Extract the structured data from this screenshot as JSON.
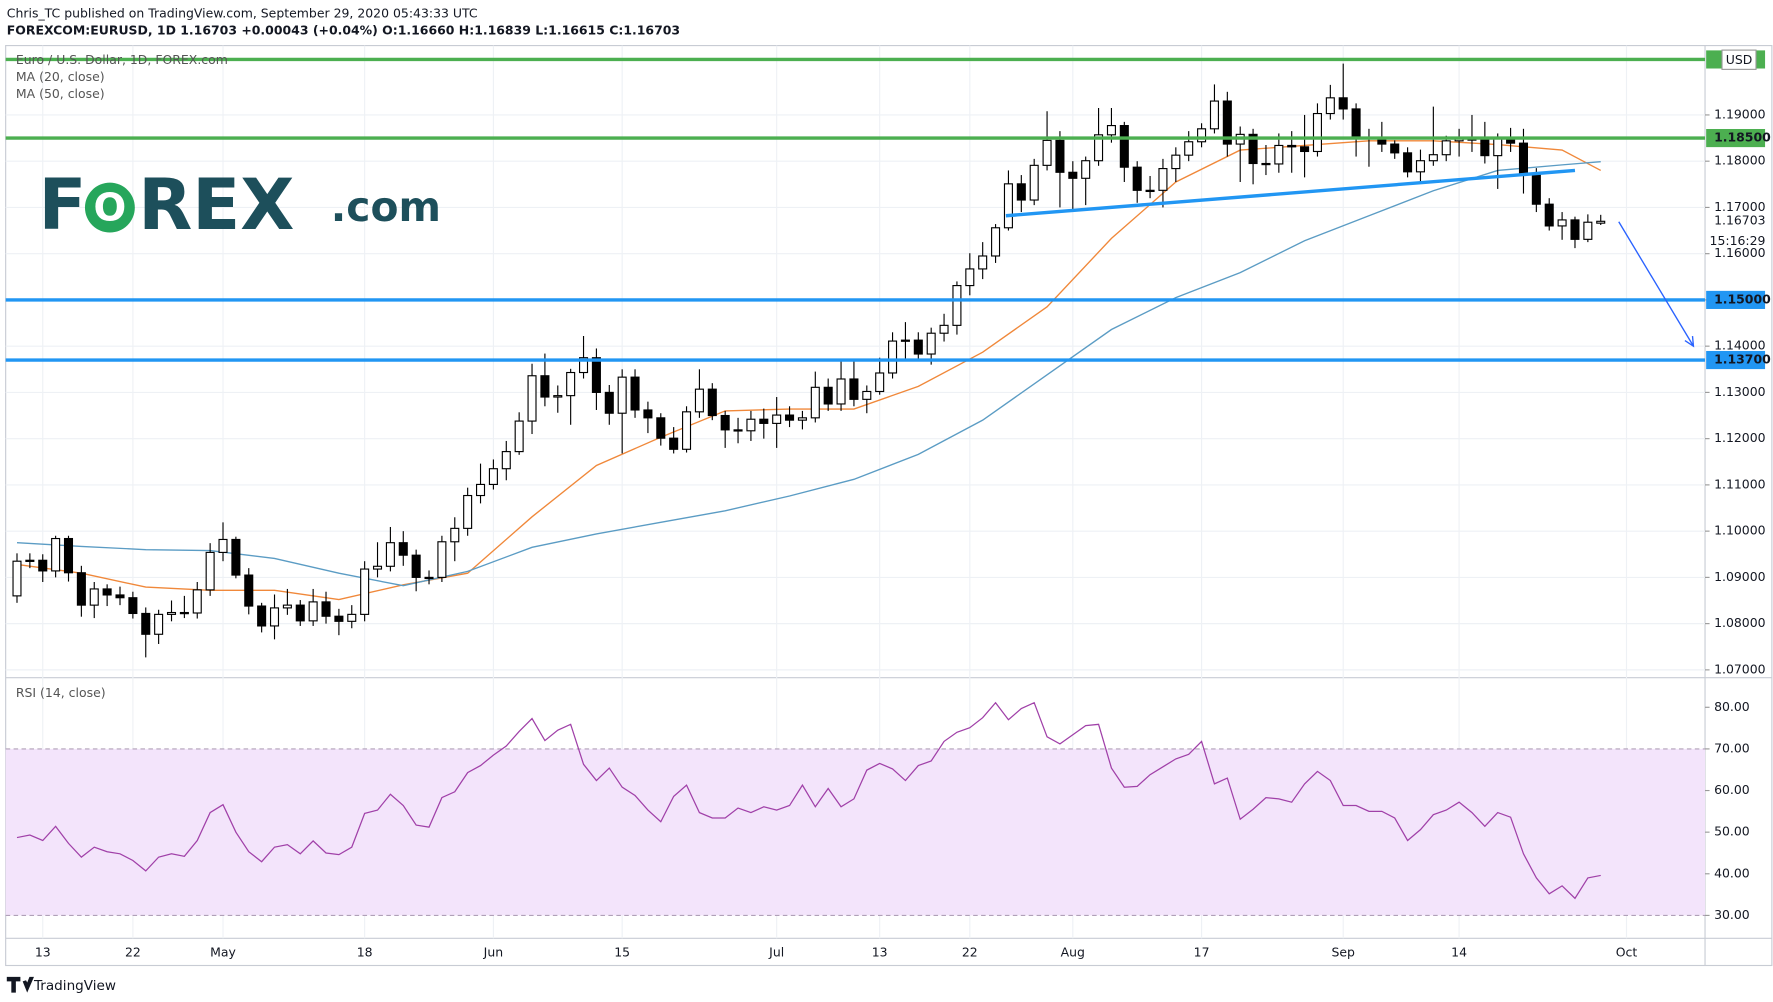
{
  "header": {
    "author": "Chris_TC published on TradingView.com, September 29, 2020 05:43:33 UTC",
    "symbol": "FOREXCOM:EURUSD, 1D 1.16703 +0.00043 (+0.04%) O:1.16660 H:1.16839 L:1.16615 C:1.16703"
  },
  "logo": [
    "F",
    "O",
    "REX",
    ".com"
  ],
  "footer": "TradingView",
  "chart_data": [
    {
      "type": "candlestick",
      "title": "Euro / U.S. Dollar, 1D, FOREX.com",
      "currency": "USD",
      "countdown": "15:16:29",
      "grid": true,
      "up_color": "#ffffff",
      "down_color": "#000000",
      "xlim": [
        -0.88,
        131.1
      ],
      "ylim": [
        1.0683,
        1.205
      ],
      "yticks": [
        {
          "value": 1.07,
          "label": "1.07000"
        },
        {
          "value": 1.08,
          "label": "1.08000"
        },
        {
          "value": 1.09,
          "label": "1.09000"
        },
        {
          "value": 1.1,
          "label": "1.10000"
        },
        {
          "value": 1.11,
          "label": "1.11000"
        },
        {
          "value": 1.12,
          "label": "1.12000"
        },
        {
          "value": 1.13,
          "label": "1.13000"
        },
        {
          "value": 1.14,
          "label": "1.14000"
        },
        {
          "value": 1.15,
          "label": "1.15000"
        },
        {
          "value": 1.16,
          "label": "1.16000"
        },
        {
          "value": 1.17,
          "label": "1.17000"
        },
        {
          "value": 1.18,
          "label": "1.18000"
        },
        {
          "value": 1.19,
          "label": "1.19000"
        }
      ],
      "ohlc": [
        [
          1.086,
          1.0952,
          1.0845,
          1.0935
        ],
        [
          1.0935,
          1.0952,
          1.092,
          1.0937
        ],
        [
          1.0937,
          1.095,
          1.089,
          1.0914
        ],
        [
          1.0914,
          1.099,
          1.09,
          1.0984
        ],
        [
          1.0984,
          1.099,
          1.0891,
          1.091
        ],
        [
          1.091,
          1.0925,
          1.0815,
          1.084
        ],
        [
          1.084,
          1.089,
          1.0812,
          1.0875
        ],
        [
          1.0875,
          1.0885,
          1.0838,
          1.0862
        ],
        [
          1.0862,
          1.088,
          1.084,
          1.0856
        ],
        [
          1.0856,
          1.0869,
          1.0811,
          1.0822
        ],
        [
          1.0822,
          1.0835,
          1.0727,
          1.0777
        ],
        [
          1.0777,
          1.083,
          1.0756,
          1.082
        ],
        [
          1.082,
          1.085,
          1.0805,
          1.0824
        ],
        [
          1.0824,
          1.086,
          1.0812,
          1.0823
        ],
        [
          1.0823,
          1.089,
          1.0811,
          1.0873
        ],
        [
          1.0873,
          1.0974,
          1.086,
          1.0954
        ],
        [
          1.0954,
          1.1019,
          1.0935,
          1.0982
        ],
        [
          1.0982,
          1.0988,
          1.0898,
          1.0905
        ],
        [
          1.0905,
          1.092,
          1.082,
          1.0838
        ],
        [
          1.0838,
          1.0845,
          1.0781,
          1.0795
        ],
        [
          1.0795,
          1.0863,
          1.0766,
          1.0834
        ],
        [
          1.0834,
          1.0875,
          1.0819,
          1.084
        ],
        [
          1.084,
          1.0851,
          1.0795,
          1.0806
        ],
        [
          1.0806,
          1.0875,
          1.0795,
          1.0847
        ],
        [
          1.0847,
          1.0869,
          1.08,
          1.0816
        ],
        [
          1.0816,
          1.0832,
          1.0775,
          1.0805
        ],
        [
          1.0805,
          1.084,
          1.079,
          1.082
        ],
        [
          1.082,
          1.0935,
          1.0805,
          1.0918
        ],
        [
          1.0918,
          1.0976,
          1.09,
          1.0924
        ],
        [
          1.0924,
          1.1009,
          1.0913,
          1.0975
        ],
        [
          1.0975,
          1.1,
          1.0925,
          1.0948
        ],
        [
          1.0948,
          1.096,
          1.087,
          1.09
        ],
        [
          1.09,
          1.0915,
          1.0885,
          1.09
        ],
        [
          1.09,
          1.099,
          1.089,
          1.0977
        ],
        [
          1.0977,
          1.103,
          1.0935,
          1.1006
        ],
        [
          1.1006,
          1.1094,
          1.099,
          1.1077
        ],
        [
          1.1077,
          1.1146,
          1.106,
          1.1101
        ],
        [
          1.1101,
          1.1155,
          1.109,
          1.1135
        ],
        [
          1.1135,
          1.1195,
          1.111,
          1.1172
        ],
        [
          1.1172,
          1.1257,
          1.1165,
          1.1238
        ],
        [
          1.1238,
          1.1362,
          1.121,
          1.1336
        ],
        [
          1.1336,
          1.1384,
          1.127,
          1.129
        ],
        [
          1.129,
          1.1315,
          1.1256,
          1.1293
        ],
        [
          1.1293,
          1.1351,
          1.123,
          1.1343
        ],
        [
          1.1343,
          1.1422,
          1.133,
          1.1375
        ],
        [
          1.1375,
          1.1395,
          1.1262,
          1.13
        ],
        [
          1.13,
          1.1316,
          1.123,
          1.1255
        ],
        [
          1.1255,
          1.135,
          1.1168,
          1.1333
        ],
        [
          1.1333,
          1.135,
          1.1245,
          1.1262
        ],
        [
          1.1262,
          1.128,
          1.1212,
          1.1245
        ],
        [
          1.1245,
          1.1255,
          1.1185,
          1.1201
        ],
        [
          1.1201,
          1.1225,
          1.1168,
          1.1177
        ],
        [
          1.1177,
          1.127,
          1.117,
          1.1258
        ],
        [
          1.1258,
          1.135,
          1.1245,
          1.1307
        ],
        [
          1.1307,
          1.132,
          1.124,
          1.125
        ],
        [
          1.125,
          1.126,
          1.118,
          1.1219
        ],
        [
          1.1219,
          1.1245,
          1.119,
          1.1217
        ],
        [
          1.1217,
          1.126,
          1.1195,
          1.1242
        ],
        [
          1.1242,
          1.1265,
          1.12,
          1.1233
        ],
        [
          1.1233,
          1.129,
          1.118,
          1.1251
        ],
        [
          1.1251,
          1.127,
          1.1225,
          1.124
        ],
        [
          1.124,
          1.126,
          1.122,
          1.1245
        ],
        [
          1.1245,
          1.1345,
          1.1235,
          1.1311
        ],
        [
          1.1311,
          1.133,
          1.126,
          1.1275
        ],
        [
          1.1275,
          1.137,
          1.126,
          1.1329
        ],
        [
          1.1329,
          1.137,
          1.127,
          1.1285
        ],
        [
          1.1285,
          1.1315,
          1.1255,
          1.1302
        ],
        [
          1.1302,
          1.1375,
          1.1295,
          1.1342
        ],
        [
          1.1342,
          1.143,
          1.133,
          1.1411
        ],
        [
          1.1411,
          1.1452,
          1.137,
          1.1413
        ],
        [
          1.1413,
          1.143,
          1.137,
          1.1383
        ],
        [
          1.1383,
          1.144,
          1.136,
          1.1428
        ],
        [
          1.1428,
          1.147,
          1.141,
          1.1445
        ],
        [
          1.1445,
          1.154,
          1.1425,
          1.1531
        ],
        [
          1.1531,
          1.1601,
          1.151,
          1.1567
        ],
        [
          1.1567,
          1.1625,
          1.1545,
          1.1595
        ],
        [
          1.1595,
          1.1664,
          1.158,
          1.1656
        ],
        [
          1.1656,
          1.178,
          1.165,
          1.1751
        ],
        [
          1.1751,
          1.177,
          1.169,
          1.1716
        ],
        [
          1.1716,
          1.1805,
          1.1705,
          1.1791
        ],
        [
          1.1791,
          1.1908,
          1.178,
          1.1845
        ],
        [
          1.1845,
          1.1865,
          1.17,
          1.1776
        ],
        [
          1.1776,
          1.18,
          1.1695,
          1.1763
        ],
        [
          1.1763,
          1.181,
          1.1705,
          1.1801
        ],
        [
          1.1801,
          1.1915,
          1.179,
          1.1857
        ],
        [
          1.1857,
          1.1915,
          1.184,
          1.1877
        ],
        [
          1.1877,
          1.1885,
          1.1755,
          1.1787
        ],
        [
          1.1787,
          1.18,
          1.171,
          1.1737
        ],
        [
          1.1737,
          1.1768,
          1.172,
          1.1737
        ],
        [
          1.1737,
          1.1805,
          1.17,
          1.1784
        ],
        [
          1.1784,
          1.183,
          1.1755,
          1.1813
        ],
        [
          1.1813,
          1.1865,
          1.18,
          1.1842
        ],
        [
          1.1842,
          1.1882,
          1.183,
          1.187
        ],
        [
          1.187,
          1.1966,
          1.186,
          1.193
        ],
        [
          1.193,
          1.195,
          1.181,
          1.1837
        ],
        [
          1.1837,
          1.1875,
          1.1755,
          1.1858
        ],
        [
          1.1858,
          1.187,
          1.175,
          1.1795
        ],
        [
          1.1795,
          1.1835,
          1.177,
          1.1794
        ],
        [
          1.1794,
          1.186,
          1.1775,
          1.1834
        ],
        [
          1.1834,
          1.1865,
          1.1775,
          1.1831
        ],
        [
          1.1831,
          1.19,
          1.1765,
          1.1821
        ],
        [
          1.1821,
          1.1925,
          1.181,
          1.1903
        ],
        [
          1.1903,
          1.1965,
          1.189,
          1.1937
        ],
        [
          1.1937,
          1.2011,
          1.189,
          1.1913
        ],
        [
          1.1913,
          1.1925,
          1.181,
          1.1852
        ],
        [
          1.1852,
          1.187,
          1.1788,
          1.1851
        ],
        [
          1.1851,
          1.1885,
          1.182,
          1.1837
        ],
        [
          1.1837,
          1.1845,
          1.1805,
          1.1818
        ],
        [
          1.1818,
          1.183,
          1.1765,
          1.1777
        ],
        [
          1.1777,
          1.1825,
          1.1755,
          1.1801
        ],
        [
          1.1801,
          1.1918,
          1.179,
          1.1814
        ],
        [
          1.1814,
          1.1855,
          1.18,
          1.1844
        ],
        [
          1.1844,
          1.187,
          1.181,
          1.1848
        ],
        [
          1.1848,
          1.19,
          1.182,
          1.1846
        ],
        [
          1.1846,
          1.1885,
          1.1795,
          1.1812
        ],
        [
          1.1812,
          1.186,
          1.174,
          1.1851
        ],
        [
          1.1851,
          1.1872,
          1.182,
          1.1839
        ],
        [
          1.1839,
          1.187,
          1.173,
          1.1771
        ],
        [
          1.1771,
          1.1785,
          1.169,
          1.1707
        ],
        [
          1.1707,
          1.172,
          1.165,
          1.166
        ],
        [
          1.166,
          1.169,
          1.163,
          1.1673
        ],
        [
          1.1673,
          1.168,
          1.1612,
          1.1631
        ],
        [
          1.1631,
          1.1685,
          1.1625,
          1.1668
        ],
        [
          1.1666,
          1.1684,
          1.1662,
          1.167
        ]
      ],
      "series": [
        {
          "name": "MA (20, close)",
          "color": "#f0883a",
          "x": [
            0,
            5,
            10,
            15,
            20,
            25,
            30,
            35,
            40,
            45,
            50,
            55,
            60,
            65,
            70,
            75,
            80,
            85,
            90,
            95,
            100,
            105,
            110,
            115,
            120,
            123
          ],
          "values": [
            1.0928,
            1.0909,
            1.0879,
            1.0872,
            1.0872,
            1.0852,
            1.0884,
            1.0909,
            1.1031,
            1.1142,
            1.1203,
            1.126,
            1.1264,
            1.1264,
            1.1313,
            1.1387,
            1.1485,
            1.1633,
            1.1755,
            1.1824,
            1.1834,
            1.1844,
            1.1844,
            1.1836,
            1.1824,
            1.178
          ]
        },
        {
          "name": "MA (50, close)",
          "color": "#5b9cc4",
          "x": [
            0,
            5,
            10,
            15,
            20,
            25,
            30,
            35,
            40,
            45,
            50,
            55,
            60,
            65,
            70,
            75,
            80,
            85,
            90,
            95,
            100,
            105,
            110,
            115,
            120,
            123
          ],
          "values": [
            1.0975,
            1.0967,
            1.096,
            1.0958,
            1.0941,
            1.0909,
            1.0882,
            1.0913,
            1.0965,
            1.0994,
            1.1019,
            1.1044,
            1.1076,
            1.1112,
            1.1166,
            1.124,
            1.1338,
            1.1436,
            1.1505,
            1.1559,
            1.1628,
            1.1682,
            1.1736,
            1.178,
            1.1792,
            1.1799
          ]
        }
      ],
      "levels": [
        {
          "value": 1.202,
          "color": "#4caf50"
        },
        {
          "value": 1.185,
          "label": "1.18500",
          "color": "#4caf50"
        },
        {
          "value": 1.15,
          "label": "1.15000",
          "color": "#2196f3"
        },
        {
          "value": 1.137,
          "label": "1.13700",
          "color": "#2196f3"
        }
      ],
      "trendline": {
        "color": "#2196f3",
        "x": [
          76.8,
          121
        ],
        "values": [
          1.1682,
          1.178
        ]
      },
      "arrow": {
        "color": "#2962ff",
        "x": [
          124.4,
          130.2
        ],
        "values": [
          1.1669,
          1.14
        ]
      },
      "last_price": {
        "value": 1.16703,
        "label": "1.16703"
      }
    },
    {
      "type": "line",
      "title": "RSI (14, close)",
      "color": "#a040a8",
      "band_color": "#f3e4fb",
      "band": [
        30,
        70
      ],
      "xlim": [
        -0.88,
        131.1
      ],
      "ylim": [
        24.5,
        87.1
      ],
      "yticks": [
        {
          "value": 30,
          "label": "30.00"
        },
        {
          "value": 40,
          "label": "40.00"
        },
        {
          "value": 50,
          "label": "50.00"
        },
        {
          "value": 60,
          "label": "60.00"
        },
        {
          "value": 70,
          "label": "70.00"
        },
        {
          "value": 80,
          "label": "80.00"
        }
      ],
      "xticks": [
        {
          "value": 2,
          "label": "13"
        },
        {
          "value": 9,
          "label": "22"
        },
        {
          "value": 16,
          "label": "May"
        },
        {
          "value": 27,
          "label": "18"
        },
        {
          "value": 37,
          "label": "Jun"
        },
        {
          "value": 47,
          "label": "15"
        },
        {
          "value": 59,
          "label": "Jul"
        },
        {
          "value": 67,
          "label": "13"
        },
        {
          "value": 74,
          "label": "22"
        },
        {
          "value": 82,
          "label": "Aug"
        },
        {
          "value": 92,
          "label": "17"
        },
        {
          "value": 103,
          "label": "Sep"
        },
        {
          "value": 112,
          "label": "14"
        },
        {
          "value": 125,
          "label": "Oct"
        }
      ],
      "values": [
        48.7,
        49.3,
        48,
        51.4,
        47.3,
        44,
        46.4,
        45.3,
        44.8,
        43.2,
        40.7,
        44,
        44.8,
        44.2,
        48,
        54.7,
        56.6,
        50,
        45.3,
        42.9,
        46.4,
        47,
        44.8,
        47.9,
        45,
        44.6,
        46.4,
        54.5,
        55.3,
        59.1,
        56.4,
        51.7,
        51.2,
        58.3,
        59.7,
        64.3,
        66,
        68.5,
        70.7,
        74.2,
        77.3,
        72,
        74.5,
        75.9,
        66.3,
        62.4,
        65.4,
        60.8,
        58.8,
        55.3,
        52.5,
        58.6,
        61.3,
        54.7,
        53.4,
        53.4,
        55.8,
        54.7,
        56.1,
        55.3,
        56.4,
        61.3,
        56.1,
        60.5,
        56.1,
        58,
        64.9,
        66.5,
        65.2,
        62.4,
        66,
        67.1,
        71.8,
        74,
        75.1,
        77.5,
        81.1,
        77,
        79.7,
        81.1,
        72.9,
        71.2,
        73.4,
        75.6,
        75.9,
        65.4,
        60.8,
        61,
        63.8,
        65.7,
        67.6,
        68.7,
        71.8,
        61.6,
        63,
        53.1,
        55.5,
        58.3,
        58,
        57.2,
        61.6,
        64.6,
        62.4,
        56.4,
        56.4,
        55,
        55,
        53.4,
        48,
        50.6,
        54.2,
        55.3,
        57.2,
        54.7,
        51.4,
        54.7,
        53.6,
        44.8,
        39,
        35.2,
        37.1,
        34.1,
        39,
        39.6
      ]
    }
  ]
}
